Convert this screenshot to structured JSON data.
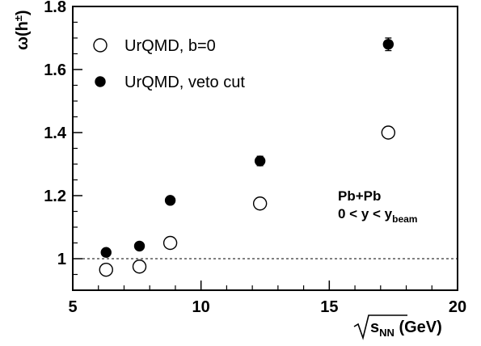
{
  "chart_data": {
    "type": "scatter",
    "xlim": [
      5,
      20
    ],
    "ylim": [
      0.9,
      1.8
    ],
    "x_ticks": [
      5,
      10,
      15,
      20
    ],
    "y_ticks": [
      1,
      1.2,
      1.4,
      1.6,
      1.8
    ],
    "x_tick_labels": [
      "5",
      "10",
      "15",
      "20"
    ],
    "y_tick_labels": [
      "1",
      "1.2",
      "1.4",
      "1.6",
      "1.8"
    ],
    "xlabel": "√s_NN (GeV)",
    "ylabel": "ω(h±)",
    "reference_line": 1.0,
    "grid": false,
    "legend_position": "top-left",
    "series": [
      {
        "name": "UrQMD, b=0",
        "marker": "open-circle",
        "x": [
          6.3,
          7.6,
          8.8,
          12.3,
          17.3
        ],
        "y": [
          0.965,
          0.975,
          1.05,
          1.175,
          1.4
        ]
      },
      {
        "name": "UrQMD, veto cut",
        "marker": "filled-circle",
        "x": [
          6.3,
          7.6,
          8.8,
          12.3,
          17.3
        ],
        "y": [
          1.02,
          1.04,
          1.185,
          1.31,
          1.68
        ],
        "yerr": [
          0.005,
          0.008,
          0.012,
          0.015,
          0.02
        ]
      }
    ],
    "annotations": [
      "Pb+Pb",
      "0 < y < y_beam"
    ]
  },
  "text": {
    "xlabel_main": "s",
    "xlabel_sub": "NN",
    "xlabel_unit": " (GeV)",
    "ylabel_main": "ω(h",
    "ylabel_sup": "±",
    "ylabel_close": ")",
    "annot_line1": "Pb+Pb",
    "annot_line2_main": "0 < y < y",
    "annot_line2_sub": "beam"
  }
}
